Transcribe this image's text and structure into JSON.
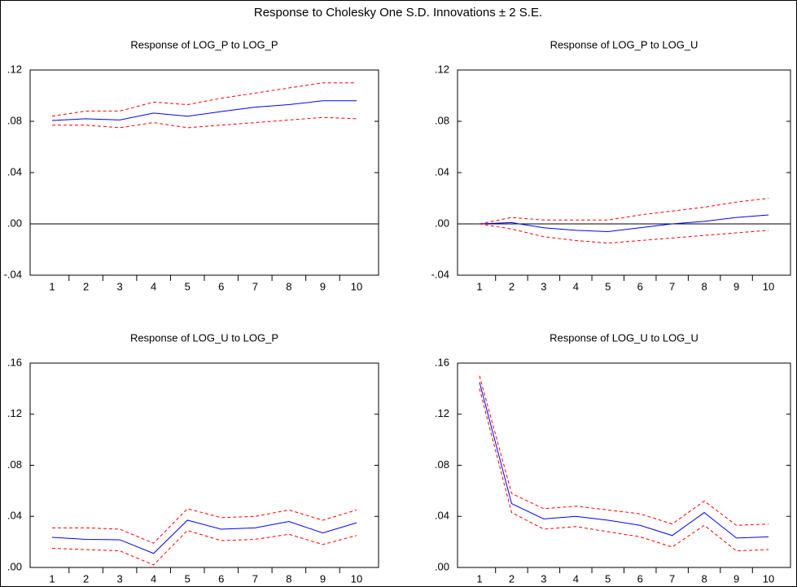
{
  "title": "Response to Cholesky One S.D. Innovations ± 2 S.E.",
  "chart_data": [
    {
      "type": "line",
      "title": "Response of LOG_P to LOG_P",
      "categories": [
        "1",
        "2",
        "3",
        "4",
        "5",
        "6",
        "7",
        "8",
        "9",
        "10"
      ],
      "ylim": [
        -0.04,
        0.12
      ],
      "yticks": [
        {
          "value": -0.04,
          "label": "-.04"
        },
        {
          "value": 0,
          "label": ".00"
        },
        {
          "value": 0.04,
          "label": ".04"
        },
        {
          "value": 0.08,
          "label": ".08"
        },
        {
          "value": 0.12,
          "label": ".12"
        }
      ],
      "zero_line": true,
      "series": [
        {
          "color": "#0000ff",
          "style": "solid",
          "values": [
            0.0806,
            0.082,
            0.081,
            0.0864,
            0.084,
            0.0876,
            0.091,
            0.093,
            0.096,
            0.096
          ]
        },
        {
          "color": "#ff0000",
          "style": "dashed",
          "values": [
            0.084,
            0.088,
            0.088,
            0.095,
            0.093,
            0.098,
            0.102,
            0.106,
            0.11,
            0.11
          ]
        },
        {
          "color": "#ff0000",
          "style": "dashed",
          "values": [
            0.077,
            0.077,
            0.075,
            0.079,
            0.075,
            0.077,
            0.079,
            0.081,
            0.083,
            0.082
          ]
        }
      ]
    },
    {
      "type": "line",
      "title": "Response of LOG_P to LOG_U",
      "categories": [
        "1",
        "2",
        "3",
        "4",
        "5",
        "6",
        "7",
        "8",
        "9",
        "10"
      ],
      "ylim": [
        -0.04,
        0.12
      ],
      "yticks": [
        {
          "value": -0.04,
          "label": "-.04"
        },
        {
          "value": 0,
          "label": ".00"
        },
        {
          "value": 0.04,
          "label": ".04"
        },
        {
          "value": 0.08,
          "label": ".08"
        },
        {
          "value": 0.12,
          "label": ".12"
        }
      ],
      "zero_line": true,
      "series": [
        {
          "color": "#0000ff",
          "style": "solid",
          "values": [
            0,
            0.001,
            -0.003,
            -0.005,
            -0.006,
            -0.003,
            0,
            0.002,
            0.005,
            0.007
          ]
        },
        {
          "color": "#ff0000",
          "style": "dashed",
          "values": [
            0,
            0.005,
            0.003,
            0.003,
            0.003,
            0.007,
            0.01,
            0.013,
            0.017,
            0.02
          ]
        },
        {
          "color": "#ff0000",
          "style": "dashed",
          "values": [
            0,
            -0.004,
            -0.01,
            -0.013,
            -0.015,
            -0.013,
            -0.011,
            -0.009,
            -0.007,
            -0.005
          ]
        }
      ]
    },
    {
      "type": "line",
      "title": "Response of LOG_U to LOG_P",
      "categories": [
        "1",
        "2",
        "3",
        "4",
        "5",
        "6",
        "7",
        "8",
        "9",
        "10"
      ],
      "ylim": [
        0,
        0.16
      ],
      "yticks": [
        {
          "value": 0,
          "label": ".00"
        },
        {
          "value": 0.04,
          "label": ".04"
        },
        {
          "value": 0.08,
          "label": ".08"
        },
        {
          "value": 0.12,
          "label": ".12"
        },
        {
          "value": 0.16,
          "label": ".16"
        }
      ],
      "zero_line": false,
      "series": [
        {
          "color": "#0000ff",
          "style": "solid",
          "values": [
            0.0236,
            0.022,
            0.0217,
            0.011,
            0.037,
            0.03,
            0.031,
            0.036,
            0.027,
            0.035
          ]
        },
        {
          "color": "#ff0000",
          "style": "dashed",
          "values": [
            0.031,
            0.031,
            0.03,
            0.019,
            0.046,
            0.039,
            0.04,
            0.045,
            0.037,
            0.045
          ]
        },
        {
          "color": "#ff0000",
          "style": "dashed",
          "values": [
            0.015,
            0.014,
            0.013,
            0.002,
            0.029,
            0.021,
            0.022,
            0.026,
            0.018,
            0.025
          ]
        }
      ]
    },
    {
      "type": "line",
      "title": "Response of LOG_U to LOG_U",
      "categories": [
        "1",
        "2",
        "3",
        "4",
        "5",
        "6",
        "7",
        "8",
        "9",
        "10"
      ],
      "ylim": [
        0,
        0.16
      ],
      "yticks": [
        {
          "value": 0,
          "label": ".00"
        },
        {
          "value": 0.04,
          "label": ".04"
        },
        {
          "value": 0.08,
          "label": ".08"
        },
        {
          "value": 0.12,
          "label": ".12"
        },
        {
          "value": 0.16,
          "label": ".16"
        }
      ],
      "zero_line": false,
      "series": [
        {
          "color": "#0000ff",
          "style": "solid",
          "values": [
            0.145,
            0.05,
            0.038,
            0.04,
            0.037,
            0.033,
            0.025,
            0.043,
            0.023,
            0.024
          ]
        },
        {
          "color": "#ff0000",
          "style": "dashed",
          "values": [
            0.15,
            0.058,
            0.046,
            0.048,
            0.045,
            0.042,
            0.034,
            0.052,
            0.033,
            0.034
          ]
        },
        {
          "color": "#ff0000",
          "style": "dashed",
          "values": [
            0.14,
            0.043,
            0.03,
            0.032,
            0.028,
            0.024,
            0.016,
            0.033,
            0.013,
            0.014
          ]
        }
      ]
    }
  ]
}
